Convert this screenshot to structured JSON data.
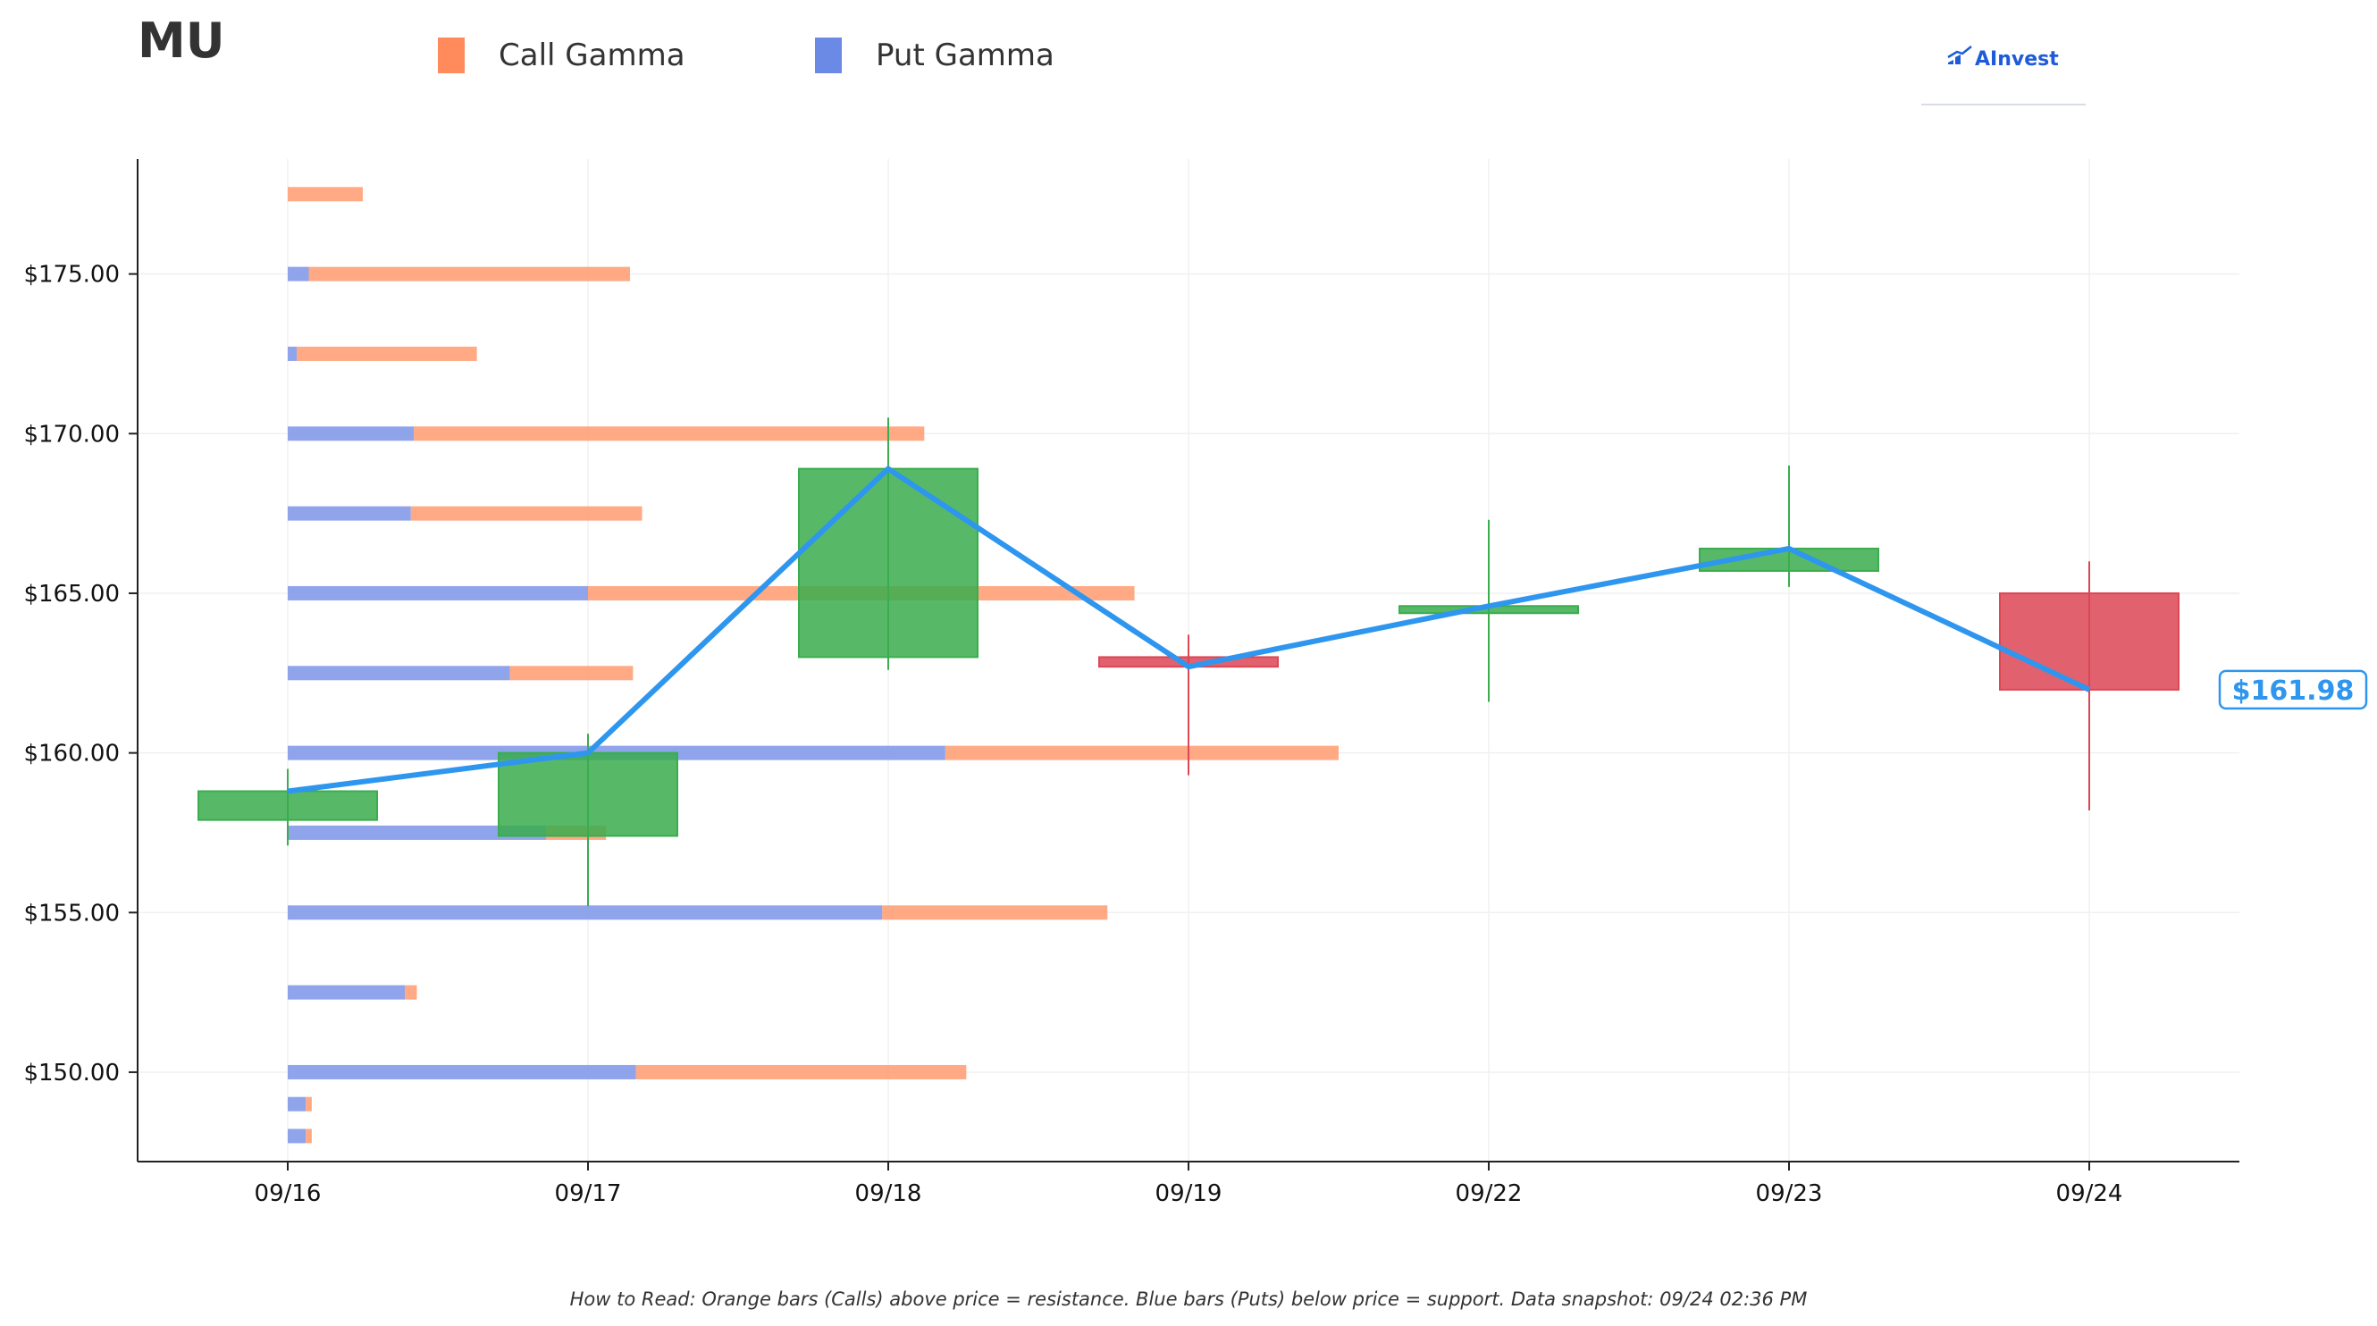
{
  "header": {
    "ticker": "MU",
    "legend": [
      {
        "label": "Call Gamma",
        "color": "#ff8a5c"
      },
      {
        "label": "Put Gamma",
        "color": "#6a8ae6"
      }
    ],
    "brand": "AInvest"
  },
  "footnote": "How to Read: Orange bars (Calls) above price = resistance. Blue bars (Puts) below price = support. Data snapshot: 09/24 02:36 PM",
  "chart_data": {
    "type": "candlestick",
    "ylim": [
      147.2,
      178.6
    ],
    "ytick_values": [
      150,
      155,
      160,
      165,
      170,
      175
    ],
    "ytick_labels": [
      "$150.00",
      "$155.00",
      "$160.00",
      "$165.00",
      "$170.00",
      "$175.00"
    ],
    "categories": [
      "09/16",
      "09/17",
      "09/18",
      "09/19",
      "09/22",
      "09/23",
      "09/24"
    ],
    "grid": true,
    "colors": {
      "up": "#3aad4e",
      "down": "#dc4655",
      "price_line": "#2e96ee",
      "call": "#ff9a70",
      "put": "#7f97e8"
    },
    "candles": [
      {
        "date": "09/16",
        "open": 157.9,
        "high": 159.5,
        "low": 157.1,
        "close": 158.8
      },
      {
        "date": "09/17",
        "open": 157.4,
        "high": 160.6,
        "low": 155.2,
        "close": 160.0
      },
      {
        "date": "09/18",
        "open": 163.0,
        "high": 170.5,
        "low": 162.6,
        "close": 168.9
      },
      {
        "date": "09/19",
        "open": 163.0,
        "high": 163.7,
        "low": 159.3,
        "close": 162.7
      },
      {
        "date": "09/22",
        "open": 164.4,
        "high": 167.3,
        "low": 161.6,
        "close": 164.6
      },
      {
        "date": "09/23",
        "open": 165.7,
        "high": 169.0,
        "low": 165.2,
        "close": 166.4
      },
      {
        "date": "09/24",
        "open": 165.0,
        "high": 166.0,
        "low": 158.2,
        "close": 161.98
      }
    ],
    "gamma_unit_note": "bar lengths in category-index units measured from 09/16",
    "gamma": [
      {
        "strike": 148.0,
        "put": 0.06,
        "call": 0.02
      },
      {
        "strike": 149.0,
        "put": 0.06,
        "call": 0.02
      },
      {
        "strike": 150.0,
        "put": 1.16,
        "call": 1.1
      },
      {
        "strike": 152.5,
        "put": 0.39,
        "call": 0.04
      },
      {
        "strike": 155.0,
        "put": 1.98,
        "call": 0.75
      },
      {
        "strike": 157.5,
        "put": 0.86,
        "call": 0.2
      },
      {
        "strike": 160.0,
        "put": 2.19,
        "call": 1.31
      },
      {
        "strike": 162.5,
        "put": 0.74,
        "call": 0.41
      },
      {
        "strike": 165.0,
        "put": 1.0,
        "call": 1.82
      },
      {
        "strike": 167.5,
        "put": 0.41,
        "call": 0.77
      },
      {
        "strike": 170.0,
        "put": 0.42,
        "call": 1.7
      },
      {
        "strike": 172.5,
        "put": 0.03,
        "call": 0.6
      },
      {
        "strike": 175.0,
        "put": 0.07,
        "call": 1.07
      },
      {
        "strike": 177.5,
        "put": 0.0,
        "call": 0.25
      }
    ],
    "last_price": 161.98,
    "last_price_label": "$161.98"
  }
}
